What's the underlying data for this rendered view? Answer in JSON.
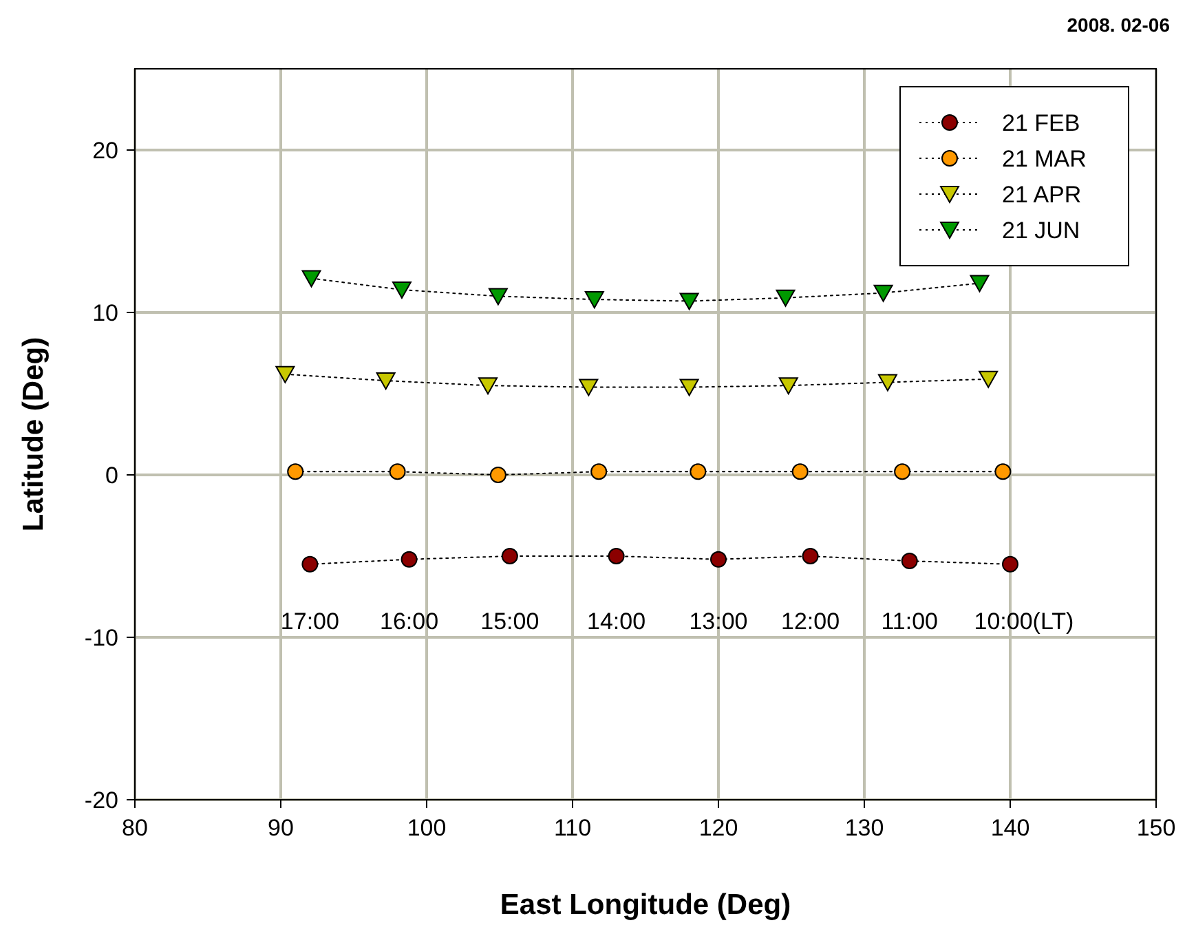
{
  "chart_data": {
    "type": "line",
    "xlabel": "East Longitude (Deg)",
    "ylabel": "Latitude (Deg)",
    "xlim": [
      80,
      150
    ],
    "xticks": [
      80,
      90,
      100,
      110,
      120,
      130,
      140,
      150
    ],
    "ylim": [
      -20,
      25
    ],
    "yticks": [
      -20,
      -10,
      0,
      10,
      20
    ],
    "grid": true,
    "legend": "top right",
    "line_style": "dotted",
    "series": [
      {
        "name": "21 FEB",
        "color": "#8b0000",
        "marker": "circle",
        "x": [
          92,
          98.8,
          105.7,
          113,
          120,
          126.3,
          133.1,
          140
        ],
        "values": [
          -5.5,
          -5.2,
          -5.0,
          -5.0,
          -5.2,
          -5.0,
          -5.3,
          -5.5
        ]
      },
      {
        "name": "21 MAR",
        "color": "#ff9900",
        "marker": "circle",
        "x": [
          91,
          98,
          104.9,
          111.8,
          118.6,
          125.6,
          132.6,
          139.5
        ],
        "values": [
          0.2,
          0.2,
          0,
          0.2,
          0.2,
          0.2,
          0.2,
          0.2
        ]
      },
      {
        "name": "21 APR",
        "color": "#c8c800",
        "marker": "triangle",
        "x": [
          90.3,
          97.2,
          104.2,
          111.1,
          118,
          124.8,
          131.6,
          138.5
        ],
        "values": [
          6.2,
          5.8,
          5.5,
          5.4,
          5.4,
          5.5,
          5.7,
          5.9
        ]
      },
      {
        "name": "21 JUN",
        "color": "#009900",
        "marker": "triangle",
        "x": [
          92.1,
          98.3,
          104.9,
          111.5,
          118,
          124.6,
          131.3,
          137.9
        ],
        "values": [
          12.1,
          11.4,
          11.0,
          10.8,
          10.7,
          10.9,
          11.2,
          11.8
        ]
      }
    ],
    "annotations": [
      "2008. 02-06",
      "17:00",
      "16:00",
      "15:00",
      "14:00",
      "13:00",
      "12:00",
      "11:00",
      "10:00(LT)"
    ]
  }
}
